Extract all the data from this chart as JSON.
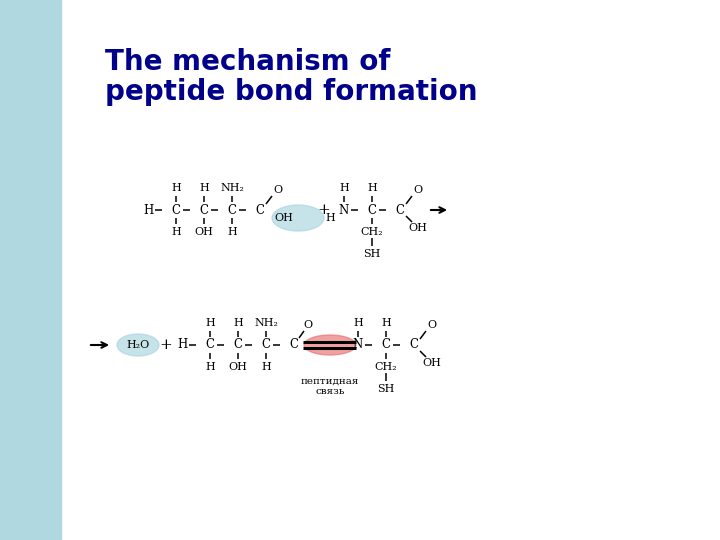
{
  "title_line1": "The mechanism of",
  "title_line2": "peptide bond formation",
  "title_color": "#00008B",
  "blue_strip_color": "#B0D8E0",
  "text_color": "#000000",
  "blue_ellipse_color": "#A8D4E0",
  "red_ellipse_color": "#E87070",
  "peptide_bond_label": "пептидная\nсвязь",
  "fig_width": 7.2,
  "fig_height": 5.4,
  "dpi": 100
}
